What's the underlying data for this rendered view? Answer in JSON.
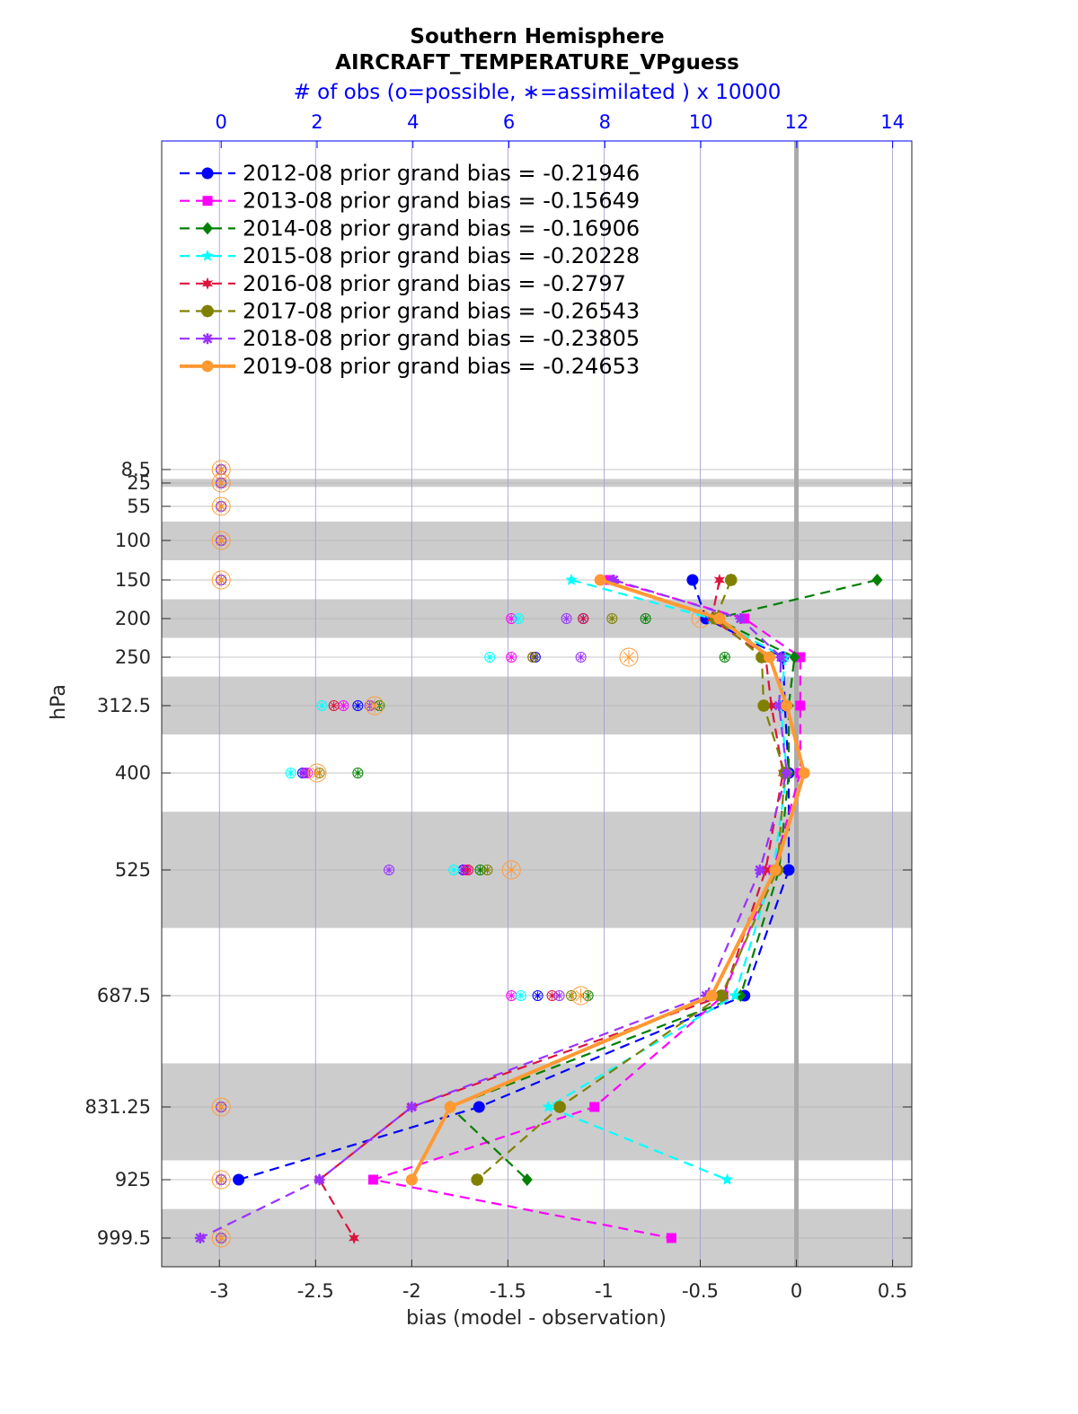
{
  "title": "Southern Hemisphere",
  "subtitle": "AIRCRAFT_TEMPERATURE_VPguess",
  "chart_data": {
    "type": "line",
    "title": "Southern Hemisphere AIRCRAFT_TEMPERATURE_VPguess",
    "xlabel": "bias (model - observation)",
    "ylabel": "hPa",
    "top_xlabel": "# of obs (o=possible, ∗=assimilated ) x 10000",
    "xlim": [
      -3.3,
      0.6
    ],
    "x_ticks": [
      "-3",
      "-2.5",
      "-2",
      "-1.5",
      "-1",
      "-0.5",
      "0",
      "0.5"
    ],
    "top_xlim": [
      -1.24,
      14.4
    ],
    "top_ticks": [
      "0",
      "2",
      "4",
      "6",
      "8",
      "10",
      "12",
      "14"
    ],
    "y_reversed": true,
    "levels": [
      8.5,
      25,
      55,
      100,
      150,
      200,
      250,
      312.5,
      400,
      525,
      687.5,
      831.25,
      925,
      999.5
    ],
    "level_labels": [
      "8.5",
      "25",
      "55",
      "100",
      "150",
      "200",
      "250",
      "312.5",
      "400",
      "525",
      "687.5",
      "831.25",
      "925",
      "999.5"
    ],
    "shaded_layers": [
      "20-30",
      "75-125",
      "175-225",
      "275-350",
      "450-600",
      "775-900",
      "962.5-1037.5"
    ],
    "grid": true,
    "legend_position": "top-left",
    "series": [
      {
        "name": "2012-08 prior grand bias = -0.21946",
        "color": "#0000ff",
        "marker": "circle",
        "style": "dashed",
        "points": [
          [
            -0.54,
            150
          ],
          [
            -0.47,
            200
          ],
          [
            -0.07,
            250
          ],
          [
            -0.06,
            312.5
          ],
          [
            -0.04,
            400
          ],
          [
            -0.04,
            525
          ],
          [
            -0.27,
            687.5
          ],
          [
            -1.65,
            831.25
          ],
          [
            -2.9,
            925
          ]
        ]
      },
      {
        "name": "2013-08 prior grand bias = -0.15649",
        "color": "#ff00ff",
        "marker": "square",
        "style": "dashed",
        "points": [
          [
            -0.97,
            150
          ],
          [
            -0.27,
            200
          ],
          [
            0.02,
            250
          ],
          [
            0.02,
            312.5
          ],
          [
            0.02,
            400
          ],
          [
            -0.12,
            525
          ],
          [
            -0.38,
            687.5
          ],
          [
            -1.05,
            831.25
          ],
          [
            -2.2,
            925
          ],
          [
            -0.65,
            999.5
          ]
        ]
      },
      {
        "name": "2014-08 prior grand bias = -0.16906",
        "color": "#008000",
        "marker": "diamond",
        "style": "dashed",
        "points": [
          [
            0.42,
            150
          ],
          [
            -0.42,
            200
          ],
          [
            -0.01,
            250
          ],
          [
            -0.04,
            312.5
          ],
          [
            -0.04,
            400
          ],
          [
            -0.09,
            525
          ],
          [
            -0.29,
            687.5
          ],
          [
            -1.8,
            831.25
          ],
          [
            -1.4,
            925
          ]
        ]
      },
      {
        "name": "2015-08 prior grand bias = -0.20228",
        "color": "#00ffff",
        "marker": "star",
        "style": "dashed",
        "points": [
          [
            -1.17,
            150
          ],
          [
            -0.44,
            200
          ],
          [
            -0.06,
            250
          ],
          [
            -0.08,
            312.5
          ],
          [
            -0.05,
            400
          ],
          [
            -0.12,
            525
          ],
          [
            -0.32,
            687.5
          ],
          [
            -1.29,
            831.25
          ],
          [
            -0.36,
            925
          ]
        ]
      },
      {
        "name": "2016-08 prior grand bias = -0.2797",
        "color": "#dc143c",
        "marker": "hexagram",
        "style": "dashed",
        "points": [
          [
            -0.4,
            150
          ],
          [
            -0.44,
            200
          ],
          [
            -0.16,
            250
          ],
          [
            -0.13,
            312.5
          ],
          [
            -0.07,
            400
          ],
          [
            -0.16,
            525
          ],
          [
            -0.38,
            687.5
          ],
          [
            -2.0,
            831.25
          ],
          [
            -2.48,
            925
          ],
          [
            -2.3,
            999.5
          ]
        ]
      },
      {
        "name": "2017-08 prior grand bias = -0.26543",
        "color": "#808000",
        "marker": "pentagon",
        "style": "dashed",
        "points": [
          [
            -0.34,
            150
          ],
          [
            -0.42,
            200
          ],
          [
            -0.18,
            250
          ],
          [
            -0.17,
            312.5
          ],
          [
            -0.06,
            400
          ],
          [
            -0.1,
            525
          ],
          [
            -0.39,
            687.5
          ],
          [
            -1.23,
            831.25
          ],
          [
            -1.66,
            925
          ]
        ]
      },
      {
        "name": "2018-08 prior grand bias = -0.23805",
        "color": "#9932ff",
        "marker": "asterisk",
        "style": "dashed",
        "points": [
          [
            -0.95,
            150
          ],
          [
            -0.29,
            200
          ],
          [
            -0.08,
            250
          ],
          [
            -0.09,
            312.5
          ],
          [
            -0.05,
            400
          ],
          [
            -0.19,
            525
          ],
          [
            -0.47,
            687.5
          ],
          [
            -2.0,
            831.25
          ],
          [
            -2.48,
            925
          ],
          [
            -3.1,
            999.5
          ]
        ]
      },
      {
        "name": "2019-08 prior grand bias = -0.24653",
        "color": "#ff9933",
        "marker": "circle",
        "style": "solid",
        "points": [
          [
            -1.02,
            150
          ],
          [
            -0.4,
            200
          ],
          [
            -0.14,
            250
          ],
          [
            -0.05,
            312.5
          ],
          [
            0.04,
            400
          ],
          [
            -0.11,
            525
          ],
          [
            -0.44,
            687.5
          ],
          [
            -1.8,
            831.25
          ],
          [
            -2.0,
            925
          ]
        ]
      }
    ],
    "obs_counts": {
      "units": "x 10000",
      "possible_assimilated": [
        {
          "level": 8.5,
          "counts": [
            0,
            0,
            0,
            0,
            0,
            0,
            0,
            0
          ]
        },
        {
          "level": 25,
          "counts": [
            0,
            0,
            0,
            0,
            0,
            0,
            0,
            0
          ]
        },
        {
          "level": 55,
          "counts": [
            0,
            0,
            0,
            0,
            0,
            0,
            0,
            0
          ]
        },
        {
          "level": 100,
          "counts": [
            0,
            0,
            0,
            0,
            0,
            0,
            0,
            0
          ]
        },
        {
          "level": 150,
          "counts": [
            0,
            0,
            0,
            0,
            0,
            0,
            0,
            0
          ]
        },
        {
          "level": 200,
          "counts": [
            7.55,
            6.05,
            8.85,
            6.2,
            7.55,
            8.15,
            7.2,
            10.0
          ]
        },
        {
          "level": 250,
          "counts": [
            6.55,
            6.05,
            10.5,
            5.6,
            6.5,
            6.5,
            7.5,
            8.5
          ]
        },
        {
          "level": 312.5,
          "counts": [
            2.85,
            2.55,
            3.3,
            2.1,
            2.35,
            3.1,
            3.1,
            3.2
          ]
        },
        {
          "level": 400,
          "counts": [
            1.7,
            1.8,
            2.85,
            1.45,
            1.75,
            2.05,
            1.75,
            2.0
          ]
        },
        {
          "level": 525,
          "counts": [
            5.05,
            5.1,
            5.4,
            4.85,
            5.15,
            5.55,
            3.5,
            6.05
          ]
        },
        {
          "level": 687.5,
          "counts": [
            6.6,
            6.05,
            7.65,
            6.25,
            6.9,
            7.3,
            7.05,
            7.5
          ]
        },
        {
          "level": 831.25,
          "counts": [
            0,
            0,
            0,
            0,
            0,
            0,
            0,
            0
          ]
        },
        {
          "level": 925,
          "counts": [
            0,
            0,
            0,
            0,
            0,
            0,
            0,
            0
          ]
        },
        {
          "level": 999.5,
          "counts": [
            0,
            0,
            0,
            0,
            0,
            0,
            0,
            0
          ]
        }
      ]
    }
  }
}
